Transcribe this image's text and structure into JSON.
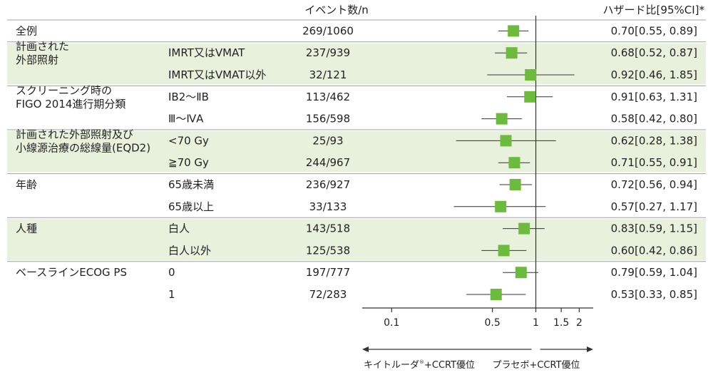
{
  "header": {
    "events_label": "イベント数/n",
    "hr_label": "ハザード比[95%CI]*"
  },
  "chart_data": {
    "type": "forest",
    "x_scale": "log",
    "xlim": [
      0.0625,
      2.5
    ],
    "reference_line": 1,
    "x_ticks": [
      {
        "value": 0.1,
        "label": "0.1"
      },
      {
        "value": 0.5,
        "label": "0.5"
      },
      {
        "value": 1,
        "label": "1"
      },
      {
        "value": 1.5,
        "label": "1.5"
      },
      {
        "value": 2,
        "label": "2"
      }
    ],
    "direction_left": "キイトルーダ",
    "direction_left_mark": "®",
    "direction_left_suffix": "+CCRT優位",
    "direction_right": "プラセボ+CCRT優位",
    "rows": [
      {
        "group": "全例",
        "subgroup": "",
        "events": "269/1060",
        "hr": 0.7,
        "lo": 0.55,
        "hi": 0.89,
        "ci_text": "0.70[0.55, 0.89]",
        "shaded": false
      },
      {
        "group": "計画された\n外部照射",
        "subgroup": "IMRT又はVMAT",
        "events": "237/939",
        "hr": 0.68,
        "lo": 0.52,
        "hi": 0.87,
        "ci_text": "0.68[0.52, 0.87]",
        "shaded": true
      },
      {
        "group": "",
        "subgroup": "IMRT又はVMAT以外",
        "events": "32/121",
        "hr": 0.92,
        "lo": 0.46,
        "hi": 1.85,
        "ci_text": "0.92[0.46, 1.85]",
        "shaded": true
      },
      {
        "group": "スクリーニング時の\nFIGO 2014進行期分類",
        "subgroup": "ⅠB2～ⅡB",
        "events": "113/462",
        "hr": 0.91,
        "lo": 0.63,
        "hi": 1.31,
        "ci_text": "0.91[0.63, 1.31]",
        "shaded": false
      },
      {
        "group": "",
        "subgroup": "Ⅲ～ⅣA",
        "events": "156/598",
        "hr": 0.58,
        "lo": 0.42,
        "hi": 0.8,
        "ci_text": "0.58[0.42, 0.80]",
        "shaded": false
      },
      {
        "group": "計画された外部照射及び\n小線源治療の総線量(EQD2)",
        "subgroup": "<70 Gy",
        "events": "25/93",
        "hr": 0.62,
        "lo": 0.28,
        "hi": 1.38,
        "ci_text": "0.62[0.28, 1.38]",
        "shaded": true
      },
      {
        "group": "",
        "subgroup": "≧70 Gy",
        "events": "244/967",
        "hr": 0.71,
        "lo": 0.55,
        "hi": 0.91,
        "ci_text": "0.71[0.55, 0.91]",
        "shaded": true
      },
      {
        "group": "年齢",
        "subgroup": "65歳未満",
        "events": "236/927",
        "hr": 0.72,
        "lo": 0.56,
        "hi": 0.94,
        "ci_text": "0.72[0.56, 0.94]",
        "shaded": false
      },
      {
        "group": "",
        "subgroup": "65歳以上",
        "events": "33/133",
        "hr": 0.57,
        "lo": 0.27,
        "hi": 1.17,
        "ci_text": "0.57[0.27, 1.17]",
        "shaded": false
      },
      {
        "group": "人種",
        "subgroup": "白人",
        "events": "143/518",
        "hr": 0.83,
        "lo": 0.59,
        "hi": 1.15,
        "ci_text": "0.83[0.59, 1.15]",
        "shaded": true
      },
      {
        "group": "",
        "subgroup": "白人以外",
        "events": "125/538",
        "hr": 0.6,
        "lo": 0.42,
        "hi": 0.86,
        "ci_text": "0.60[0.42, 0.86]",
        "shaded": true
      },
      {
        "group": "ベースラインECOG PS",
        "subgroup": "0",
        "events": "197/777",
        "hr": 0.79,
        "lo": 0.59,
        "hi": 1.04,
        "ci_text": "0.79[0.59, 1.04]",
        "shaded": false
      },
      {
        "group": "",
        "subgroup": "1",
        "events": "72/283",
        "hr": 0.53,
        "lo": 0.33,
        "hi": 0.85,
        "ci_text": "0.53[0.33, 0.85]",
        "shaded": false
      }
    ],
    "colors": {
      "marker": "#6cbb3c",
      "band": "#e8f1dc",
      "divider": "#9ea0a3",
      "line": "#333333"
    }
  }
}
